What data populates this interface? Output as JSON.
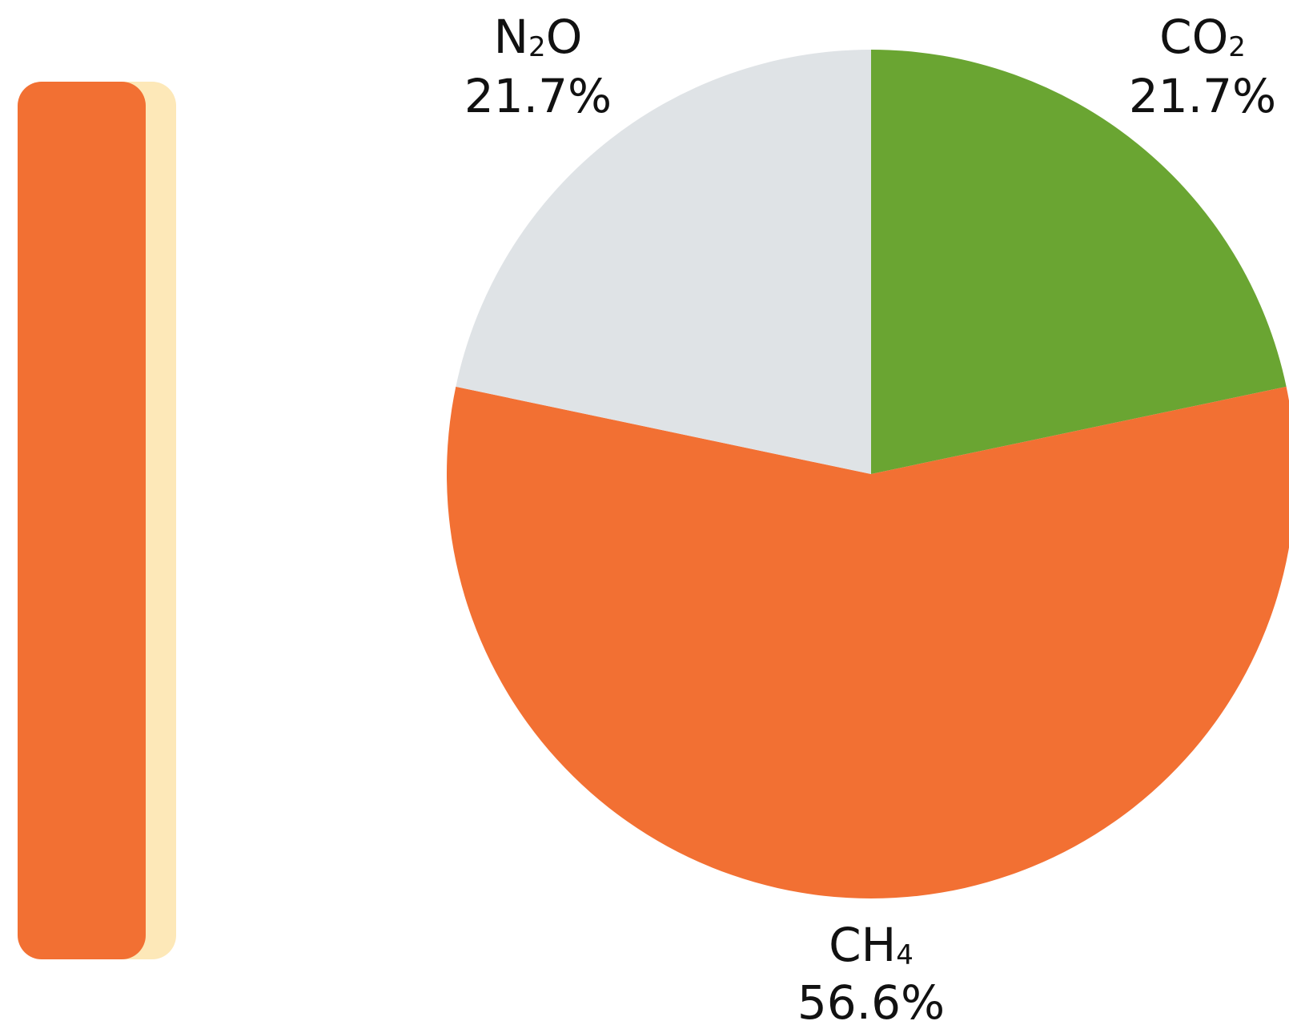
{
  "chart_data": {
    "type": "pie",
    "start_angle_deg": 0,
    "direction": "clockwise",
    "slices": [
      {
        "name": "CO",
        "subscript": "2",
        "value": 21.7,
        "label": "21.7%",
        "color": "#6aa532"
      },
      {
        "name": "CH",
        "subscript": "4",
        "value": 56.6,
        "label": "56.6%",
        "color": "#f27033"
      },
      {
        "name": "N",
        "subscript": "2",
        "suffix": "O",
        "value": 21.7,
        "label": "21.7%",
        "color": "#dfe3e6"
      }
    ]
  },
  "side_bar": {
    "front_color": "#f27033",
    "back_color": "#fde8b8"
  }
}
